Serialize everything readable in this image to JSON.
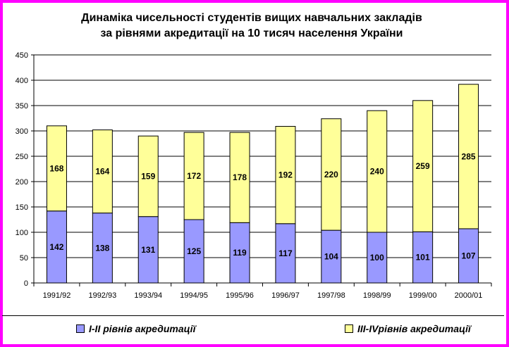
{
  "chart_data": {
    "type": "bar",
    "stacked": true,
    "title": [
      "Динаміка чисельності студентів вищих навчальних закладів",
      "за рівнями акредитації на 10 тисяч населення України"
    ],
    "categories": [
      "1991/92",
      "1992/93",
      "1993/94",
      "1994/95",
      "1995/96",
      "1996/97",
      "1997/98",
      "1998/99",
      "1999/00",
      "2000/01"
    ],
    "series": [
      {
        "name": "І-ІІ рівнів акредитації",
        "color": "#9999ff",
        "values": [
          142,
          138,
          131,
          125,
          119,
          117,
          104,
          100,
          101,
          107
        ]
      },
      {
        "name": "ІІІ-ІVрівнів акредитації",
        "color": "#ffff99",
        "values": [
          168,
          164,
          159,
          172,
          178,
          192,
          220,
          240,
          259,
          285
        ]
      }
    ],
    "ylim": [
      0,
      450
    ],
    "yticks": [
      0,
      50,
      100,
      150,
      200,
      250,
      300,
      350,
      400,
      450
    ],
    "grid": true,
    "legend": "bottom"
  }
}
